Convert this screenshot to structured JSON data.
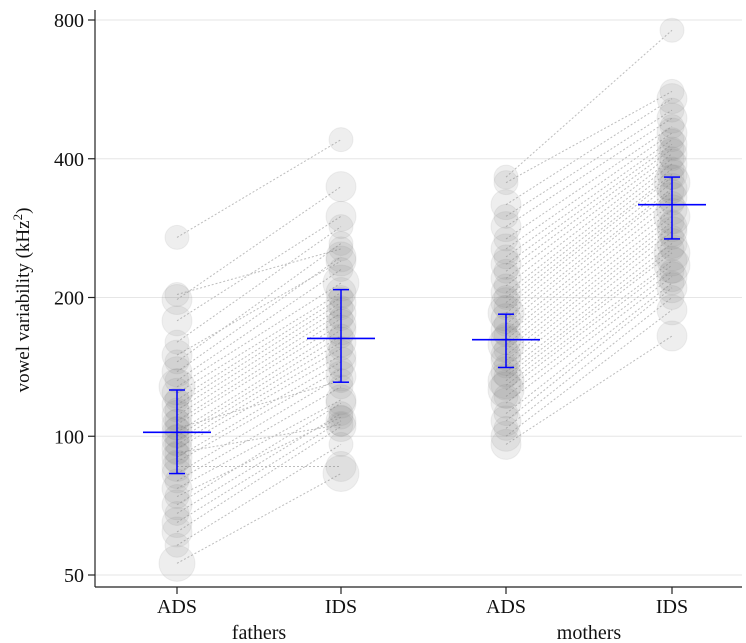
{
  "chart_data": {
    "type": "scatter",
    "yscale": "log2",
    "ylim": [
      48,
      830
    ],
    "yticks": [
      50,
      100,
      200,
      400,
      800
    ],
    "ytick_labels": [
      "50",
      "100",
      "200",
      "400",
      "800"
    ],
    "ylabel_main": "vowel variability (kHz",
    "ylabel_sup": "2",
    "ylabel_close": ")",
    "categories": [
      "ADS",
      "IDS",
      "ADS",
      "IDS"
    ],
    "groups": [
      {
        "label": "fathers",
        "span": [
          0,
          1
        ]
      },
      {
        "label": "mothers",
        "span": [
          2,
          3
        ]
      }
    ],
    "grid": true,
    "point_color": "#888888",
    "line_color": "#bdbdbd",
    "summary_color": "#0000ff",
    "summary": [
      {
        "category": "ADS",
        "group": "fathers",
        "mean": 102,
        "lower": 83,
        "upper": 126
      },
      {
        "category": "IDS",
        "group": "fathers",
        "mean": 163,
        "lower": 131,
        "upper": 208
      },
      {
        "category": "ADS",
        "group": "mothers",
        "mean": 162,
        "lower": 141,
        "upper": 184
      },
      {
        "category": "IDS",
        "group": "mothers",
        "mean": 318,
        "lower": 268,
        "upper": 365
      }
    ],
    "pairs": [
      {
        "group": "fathers",
        "ads": 53,
        "ids": 83,
        "n": 4
      },
      {
        "group": "fathers",
        "ads": 58,
        "ids": 96,
        "n": 2
      },
      {
        "group": "fathers",
        "ads": 62,
        "ids": 105,
        "n": 3
      },
      {
        "group": "fathers",
        "ads": 65,
        "ids": 108,
        "n": 3
      },
      {
        "group": "fathers",
        "ads": 68,
        "ids": 112,
        "n": 2
      },
      {
        "group": "fathers",
        "ads": 71,
        "ids": 118,
        "n": 3
      },
      {
        "group": "fathers",
        "ads": 74,
        "ids": 110,
        "n": 2
      },
      {
        "group": "fathers",
        "ads": 77,
        "ids": 120,
        "n": 3
      },
      {
        "group": "fathers",
        "ads": 80,
        "ids": 128,
        "n": 2
      },
      {
        "group": "fathers",
        "ads": 83,
        "ids": 135,
        "n": 3
      },
      {
        "group": "fathers",
        "ads": 86,
        "ids": 86,
        "n": 3
      },
      {
        "group": "fathers",
        "ads": 88,
        "ids": 140,
        "n": 2
      },
      {
        "group": "fathers",
        "ads": 90,
        "ids": 145,
        "n": 3
      },
      {
        "group": "fathers",
        "ads": 92,
        "ids": 106,
        "n": 2
      },
      {
        "group": "fathers",
        "ads": 94,
        "ids": 150,
        "n": 3
      },
      {
        "group": "fathers",
        "ads": 96,
        "ids": 155,
        "n": 2
      },
      {
        "group": "fathers",
        "ads": 98,
        "ids": 160,
        "n": 3
      },
      {
        "group": "fathers",
        "ads": 100,
        "ids": 165,
        "n": 2
      },
      {
        "group": "fathers",
        "ads": 102,
        "ids": 170,
        "n": 3
      },
      {
        "group": "fathers",
        "ads": 104,
        "ids": 132,
        "n": 2
      },
      {
        "group": "fathers",
        "ads": 106,
        "ids": 175,
        "n": 3
      },
      {
        "group": "fathers",
        "ads": 108,
        "ids": 180,
        "n": 2
      },
      {
        "group": "fathers",
        "ads": 111,
        "ids": 185,
        "n": 3
      },
      {
        "group": "fathers",
        "ads": 114,
        "ids": 190,
        "n": 2
      },
      {
        "group": "fathers",
        "ads": 117,
        "ids": 195,
        "n": 3
      },
      {
        "group": "fathers",
        "ads": 120,
        "ids": 200,
        "n": 2
      },
      {
        "group": "fathers",
        "ads": 124,
        "ids": 205,
        "n": 3
      },
      {
        "group": "fathers",
        "ads": 128,
        "ids": 215,
        "n": 4
      },
      {
        "group": "fathers",
        "ads": 132,
        "ids": 230,
        "n": 2
      },
      {
        "group": "fathers",
        "ads": 138,
        "ids": 245,
        "n": 3
      },
      {
        "group": "fathers",
        "ads": 145,
        "ids": 262,
        "n": 2
      },
      {
        "group": "fathers",
        "ads": 150,
        "ids": 240,
        "n": 3
      },
      {
        "group": "fathers",
        "ads": 160,
        "ids": 285,
        "n": 2
      },
      {
        "group": "fathers",
        "ads": 178,
        "ids": 300,
        "n": 3
      },
      {
        "group": "fathers",
        "ads": 198,
        "ids": 348,
        "n": 3
      },
      {
        "group": "fathers",
        "ads": 203,
        "ids": 255,
        "n": 2
      },
      {
        "group": "fathers",
        "ads": 270,
        "ids": 440,
        "n": 2
      },
      {
        "group": "mothers",
        "ads": 96,
        "ids": 165,
        "n": 3
      },
      {
        "group": "mothers",
        "ads": 100,
        "ids": 188,
        "n": 3
      },
      {
        "group": "mothers",
        "ads": 104,
        "ids": 200,
        "n": 2
      },
      {
        "group": "mothers",
        "ads": 108,
        "ids": 210,
        "n": 3
      },
      {
        "group": "mothers",
        "ads": 112,
        "ids": 215,
        "n": 2
      },
      {
        "group": "mothers",
        "ads": 118,
        "ids": 222,
        "n": 3
      },
      {
        "group": "mothers",
        "ads": 122,
        "ids": 228,
        "n": 2
      },
      {
        "group": "mothers",
        "ads": 126,
        "ids": 235,
        "n": 4
      },
      {
        "group": "mothers",
        "ads": 129,
        "ids": 240,
        "n": 3
      },
      {
        "group": "mothers",
        "ads": 132,
        "ids": 250,
        "n": 4
      },
      {
        "group": "mothers",
        "ads": 135,
        "ids": 255,
        "n": 2
      },
      {
        "group": "mothers",
        "ads": 138,
        "ids": 262,
        "n": 3
      },
      {
        "group": "mothers",
        "ads": 142,
        "ids": 270,
        "n": 2
      },
      {
        "group": "mothers",
        "ads": 146,
        "ids": 278,
        "n": 3
      },
      {
        "group": "mothers",
        "ads": 150,
        "ids": 285,
        "n": 3
      },
      {
        "group": "mothers",
        "ads": 154,
        "ids": 292,
        "n": 2
      },
      {
        "group": "mothers",
        "ads": 158,
        "ids": 300,
        "n": 4
      },
      {
        "group": "mothers",
        "ads": 162,
        "ids": 310,
        "n": 3
      },
      {
        "group": "mothers",
        "ads": 166,
        "ids": 320,
        "n": 2
      },
      {
        "group": "mothers",
        "ads": 170,
        "ids": 330,
        "n": 3
      },
      {
        "group": "mothers",
        "ads": 175,
        "ids": 340,
        "n": 2
      },
      {
        "group": "mothers",
        "ads": 180,
        "ids": 345,
        "n": 3
      },
      {
        "group": "mothers",
        "ads": 185,
        "ids": 355,
        "n": 4
      },
      {
        "group": "mothers",
        "ads": 190,
        "ids": 365,
        "n": 2
      },
      {
        "group": "mothers",
        "ads": 195,
        "ids": 370,
        "n": 3
      },
      {
        "group": "mothers",
        "ads": 200,
        "ids": 380,
        "n": 2
      },
      {
        "group": "mothers",
        "ads": 205,
        "ids": 390,
        "n": 3
      },
      {
        "group": "mothers",
        "ads": 212,
        "ids": 400,
        "n": 2
      },
      {
        "group": "mothers",
        "ads": 220,
        "ids": 410,
        "n": 3
      },
      {
        "group": "mothers",
        "ads": 228,
        "ids": 420,
        "n": 2
      },
      {
        "group": "mothers",
        "ads": 236,
        "ids": 430,
        "n": 3
      },
      {
        "group": "mothers",
        "ads": 245,
        "ids": 440,
        "n": 2
      },
      {
        "group": "mothers",
        "ads": 255,
        "ids": 455,
        "n": 3
      },
      {
        "group": "mothers",
        "ads": 268,
        "ids": 470,
        "n": 2
      },
      {
        "group": "mothers",
        "ads": 285,
        "ids": 490,
        "n": 3
      },
      {
        "group": "mothers",
        "ads": 300,
        "ids": 510,
        "n": 2
      },
      {
        "group": "mothers",
        "ads": 318,
        "ids": 540,
        "n": 3
      },
      {
        "group": "mothers",
        "ads": 355,
        "ids": 560,
        "n": 2
      },
      {
        "group": "mothers",
        "ads": 365,
        "ids": 760,
        "n": 2
      }
    ]
  }
}
